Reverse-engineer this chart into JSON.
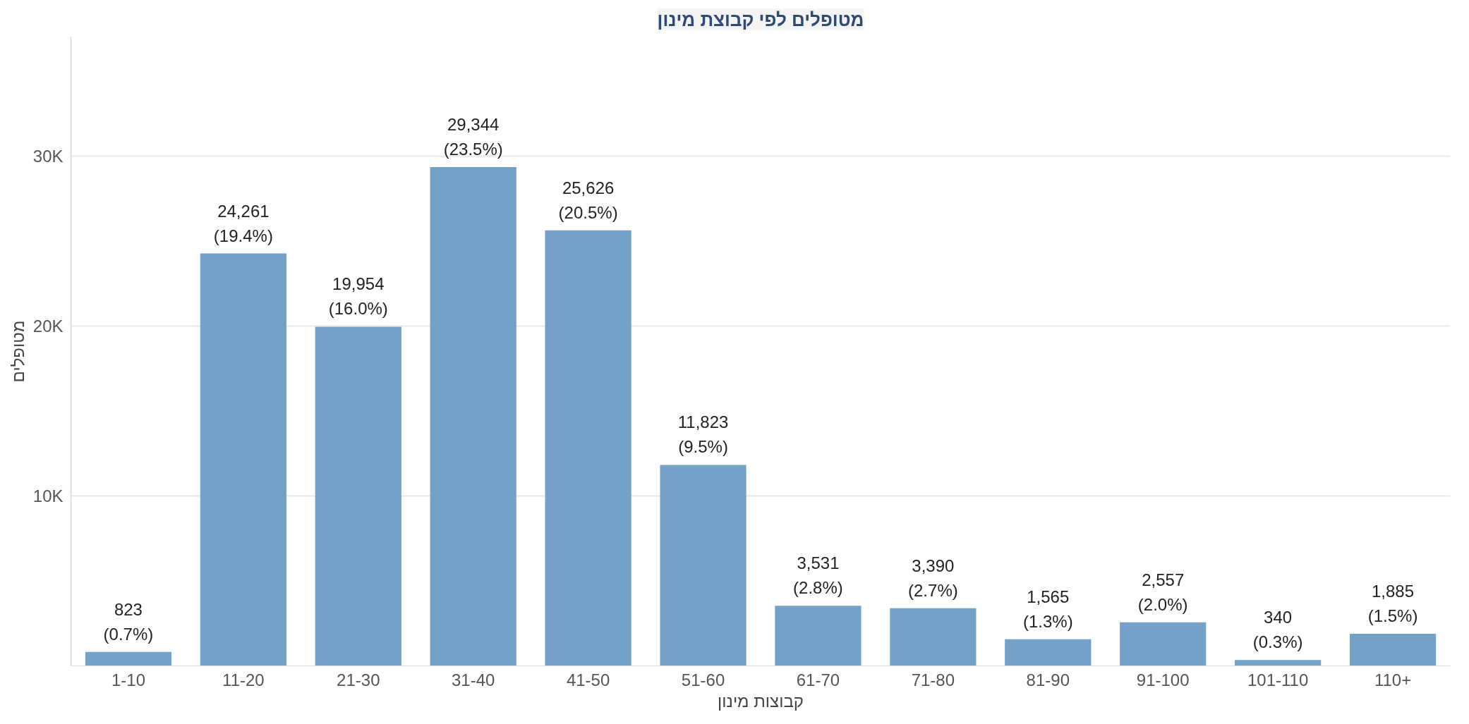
{
  "chart_data": {
    "type": "bar",
    "title": "מטופלים לפי קבוצת מינון",
    "xlabel": "קבוצות מינון",
    "ylabel": "מטופלים",
    "categories": [
      "1-10",
      "11-20",
      "21-30",
      "31-40",
      "41-50",
      "51-60",
      "61-70",
      "71-80",
      "81-90",
      "91-100",
      "101-110",
      "110+"
    ],
    "values": [
      823,
      24261,
      19954,
      29344,
      25626,
      11823,
      3531,
      3390,
      1565,
      2557,
      340,
      1885
    ],
    "value_labels": [
      "823\n(0.7%)",
      "24,261\n(19.4%)",
      "19,954\n(16.0%)",
      "29,344\n(23.5%)",
      "25,626\n(20.5%)",
      "11,823\n(9.5%)",
      "3,531\n(2.8%)",
      "3,390\n(2.7%)",
      "1,565\n(1.3%)",
      "2,557\n(2.0%)",
      "340\n(0.3%)",
      "1,885\n(1.5%)"
    ],
    "color": "#73a1c7",
    "ylim": [
      0,
      37000
    ],
    "yticks": [
      {
        "value": 10000,
        "label": "10K"
      },
      {
        "value": 20000,
        "label": "20K"
      },
      {
        "value": 30000,
        "label": "30K"
      }
    ],
    "grid": "y"
  }
}
